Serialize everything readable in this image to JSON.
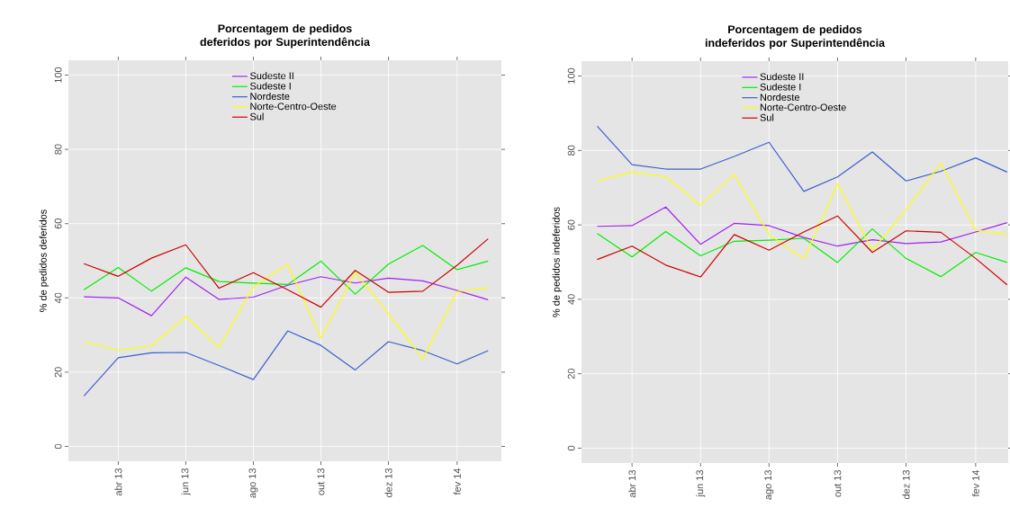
{
  "chart_data": [
    {
      "type": "line",
      "title": "Porcentagem de pedidos deferidos por Superintendência",
      "ylabel": "% de pedidos deferidos",
      "x": [
        "2013-03",
        "2013-04",
        "2013-05",
        "2013-06",
        "2013-07",
        "2013-08",
        "2013-09",
        "2013-10",
        "2013-11",
        "2013-12",
        "2014-01",
        "2014-02",
        "2014-03"
      ],
      "series": [
        {
          "name": "Sudeste II",
          "color": "#a020f0",
          "values": [
            40.3,
            40.0,
            35.2,
            45.6,
            39.6,
            40.2,
            43.4,
            45.7,
            44.0,
            45.3,
            44.6,
            42.0,
            39.5
          ]
        },
        {
          "name": "Sudeste I",
          "color": "#00ee00",
          "values": [
            42.2,
            48.2,
            41.8,
            48.1,
            44.4,
            44.0,
            43.6,
            49.9,
            41.0,
            49.1,
            54.1,
            47.6,
            49.9
          ]
        },
        {
          "name": "Nordeste",
          "color": "#3a5fcd",
          "values": [
            13.6,
            23.9,
            25.2,
            25.3,
            21.8,
            18.0,
            31.1,
            27.2,
            20.6,
            28.2,
            25.8,
            22.2,
            25.8
          ]
        },
        {
          "name": "Norte-Centro-Oeste",
          "color": "#ffff00",
          "values": [
            28.2,
            25.9,
            27.1,
            35.0,
            26.6,
            43.0,
            49.1,
            29.2,
            46.9,
            35.8,
            23.6,
            41.7,
            42.7
          ]
        },
        {
          "name": "Sul",
          "color": "#cd0000",
          "values": [
            49.2,
            45.8,
            50.7,
            54.3,
            42.6,
            46.8,
            42.2,
            37.5,
            47.4,
            41.5,
            41.8,
            48.8,
            55.9
          ]
        }
      ],
      "xlim": [
        "2013-02-15",
        "2014-03-13"
      ],
      "xticks": [
        {
          "value": "2013-04",
          "label": "abr 13"
        },
        {
          "value": "2013-06",
          "label": "jun 13"
        },
        {
          "value": "2013-08",
          "label": "ago 13"
        },
        {
          "value": "2013-10",
          "label": "out 13"
        },
        {
          "value": "2013-12",
          "label": "dez 13"
        },
        {
          "value": "2014-02",
          "label": "fev 14"
        }
      ],
      "ylim": [
        -4,
        104
      ],
      "yticks": [
        0,
        20,
        40,
        60,
        80,
        100
      ],
      "grid": true,
      "legend": "top",
      "marker": "none",
      "line_style": "solid"
    },
    {
      "type": "line",
      "title": "Porcentagem de pedidos indeferidos por Superintendência",
      "ylabel": "% de pedidos indeferidos",
      "x": [
        "2013-03",
        "2013-04",
        "2013-05",
        "2013-06",
        "2013-07",
        "2013-08",
        "2013-09",
        "2013-10",
        "2013-11",
        "2013-12",
        "2014-01",
        "2014-02",
        "2014-03"
      ],
      "series": [
        {
          "name": "Sudeste II",
          "color": "#a020f0",
          "values": [
            59.6,
            59.8,
            64.8,
            54.8,
            60.4,
            59.8,
            56.6,
            54.3,
            56.0,
            55.0,
            55.4,
            58.1,
            60.6
          ]
        },
        {
          "name": "Sudeste I",
          "color": "#00ee00",
          "values": [
            57.7,
            51.4,
            58.2,
            51.7,
            55.6,
            55.9,
            56.4,
            49.9,
            58.9,
            51.0,
            46.1,
            52.6,
            49.9
          ]
        },
        {
          "name": "Nordeste",
          "color": "#3a5fcd",
          "values": [
            86.5,
            76.2,
            75.0,
            75.0,
            78.4,
            82.2,
            69.0,
            72.9,
            79.6,
            71.8,
            74.4,
            78.0,
            74.2
          ]
        },
        {
          "name": "Norte-Centro-Oeste",
          "color": "#ffff00",
          "values": [
            71.8,
            74.2,
            72.9,
            65.3,
            73.6,
            57.4,
            50.9,
            71.0,
            53.2,
            64.1,
            76.6,
            58.6,
            57.4
          ]
        },
        {
          "name": "Sul",
          "color": "#cd0000",
          "values": [
            50.7,
            54.3,
            49.2,
            46.0,
            57.4,
            53.2,
            58.1,
            62.4,
            52.6,
            58.4,
            58.0,
            51.0,
            43.9
          ]
        }
      ],
      "xlim": [
        "2013-02-15",
        "2014-03-02"
      ],
      "xticks": [
        {
          "value": "2013-04",
          "label": "abr 13"
        },
        {
          "value": "2013-06",
          "label": "jun 13"
        },
        {
          "value": "2013-08",
          "label": "ago 13"
        },
        {
          "value": "2013-10",
          "label": "out 13"
        },
        {
          "value": "2013-12",
          "label": "dez 13"
        },
        {
          "value": "2014-02",
          "label": "fev 14"
        }
      ],
      "ylim": [
        -4,
        104
      ],
      "yticks": [
        0,
        20,
        40,
        60,
        80,
        100
      ],
      "grid": true,
      "legend": "top",
      "marker": "none",
      "line_style": "solid"
    }
  ]
}
